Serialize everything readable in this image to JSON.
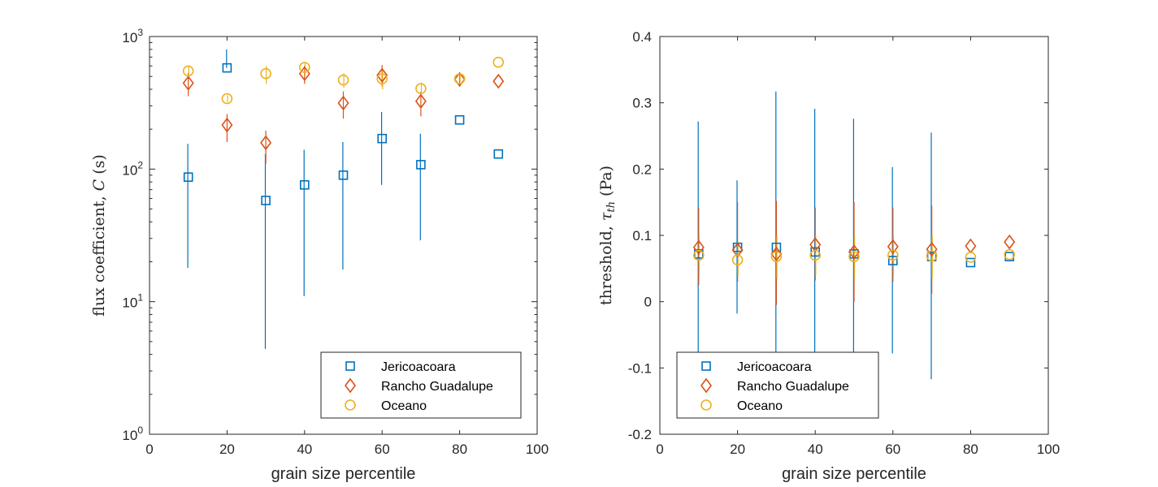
{
  "colors": {
    "jericoacoara": "#0072BD",
    "rancho": "#D95319",
    "oceano": "#EDB120",
    "axis": "#262626"
  },
  "chart_data": [
    {
      "type": "scatter",
      "xlabel": "grain size percentile",
      "ylabel": "flux coefficient, C (s)",
      "ylabel_parts": {
        "pre": "flux coefficient, ",
        "var": "C",
        "post": " (s)"
      },
      "xlim": [
        0,
        100
      ],
      "ylim": [
        1,
        1000
      ],
      "yscale": "log",
      "xticks": [
        0,
        20,
        40,
        60,
        80,
        100
      ],
      "yticks": [
        {
          "value": 1,
          "base": "10",
          "exp": "0"
        },
        {
          "value": 10,
          "base": "10",
          "exp": "1"
        },
        {
          "value": 100,
          "base": "10",
          "exp": "2"
        },
        {
          "value": 1000,
          "base": "10",
          "exp": "3"
        }
      ],
      "legend_position": "bottom-right",
      "series": [
        {
          "name": "Jericoacoara",
          "marker": "square",
          "x": [
            10,
            20,
            30,
            40,
            50,
            60,
            70,
            80,
            90
          ],
          "y": [
            87,
            580,
            58,
            76,
            90,
            170,
            108,
            235,
            130
          ],
          "yerr_low": [
            18,
            580,
            4.4,
            11,
            17.5,
            76,
            29,
            235,
            130
          ],
          "yerr_high": [
            155,
            800,
            130,
            140,
            160,
            270,
            185,
            235,
            130
          ]
        },
        {
          "name": "Rancho Guadalupe",
          "marker": "diamond",
          "x": [
            10,
            20,
            30,
            40,
            50,
            60,
            70,
            80,
            90
          ],
          "y": [
            445,
            215,
            158,
            525,
            315,
            510,
            325,
            475,
            460
          ],
          "yerr_low": [
            355,
            160,
            110,
            440,
            240,
            420,
            250,
            420,
            460
          ],
          "yerr_high": [
            530,
            260,
            195,
            600,
            385,
            610,
            385,
            530,
            460
          ]
        },
        {
          "name": "Oceano",
          "marker": "circle",
          "x": [
            10,
            20,
            30,
            40,
            50,
            60,
            70,
            80,
            90
          ],
          "y": [
            550,
            340,
            525,
            585,
            470,
            480,
            405,
            480,
            640
          ],
          "yerr_low": [
            500,
            320,
            440,
            520,
            410,
            400,
            370,
            450,
            640
          ],
          "yerr_high": [
            600,
            360,
            600,
            640,
            530,
            550,
            450,
            510,
            640
          ]
        }
      ]
    },
    {
      "type": "scatter",
      "xlabel": "grain size percentile",
      "ylabel": "threshold, τth (Pa)",
      "ylabel_parts": {
        "pre": "threshold, ",
        "var": "τ",
        "sub": "th",
        "post": " (Pa)"
      },
      "xlim": [
        0,
        100
      ],
      "ylim": [
        -0.2,
        0.4
      ],
      "yscale": "linear",
      "xticks": [
        0,
        20,
        40,
        60,
        80,
        100
      ],
      "yticks": [
        {
          "value": -0.2,
          "label": "-0.2"
        },
        {
          "value": -0.1,
          "label": "-0.1"
        },
        {
          "value": 0,
          "label": "0"
        },
        {
          "value": 0.1,
          "label": "0.1"
        },
        {
          "value": 0.2,
          "label": "0.2"
        },
        {
          "value": 0.3,
          "label": "0.3"
        },
        {
          "value": 0.4,
          "label": "0.4"
        }
      ],
      "legend_position": "bottom-left",
      "series": [
        {
          "name": "Jericoacoara",
          "marker": "square",
          "x": [
            10,
            20,
            30,
            40,
            50,
            60,
            70,
            80,
            90
          ],
          "y": [
            0.072,
            0.082,
            0.082,
            0.075,
            0.072,
            0.062,
            0.068,
            0.059,
            0.068
          ],
          "yerr_low": [
            -0.13,
            -0.018,
            -0.15,
            -0.14,
            -0.13,
            -0.078,
            -0.117,
            0.059,
            0.068
          ],
          "yerr_high": [
            0.272,
            0.183,
            0.317,
            0.291,
            0.276,
            0.203,
            0.255,
            0.059,
            0.068
          ]
        },
        {
          "name": "Rancho Guadalupe",
          "marker": "diamond",
          "x": [
            10,
            20,
            30,
            40,
            50,
            60,
            70,
            80,
            90
          ],
          "y": [
            0.082,
            0.078,
            0.072,
            0.086,
            0.075,
            0.083,
            0.079,
            0.084,
            0.09
          ],
          "yerr_low": [
            0.025,
            0.03,
            -0.005,
            0.032,
            0.0,
            0.03,
            0.012,
            0.084,
            0.09
          ],
          "yerr_high": [
            0.142,
            0.15,
            0.152,
            0.142,
            0.15,
            0.142,
            0.145,
            0.084,
            0.09
          ]
        },
        {
          "name": "Oceano",
          "marker": "circle",
          "x": [
            10,
            20,
            30,
            40,
            50,
            60,
            70,
            80,
            90
          ],
          "y": [
            0.07,
            0.063,
            0.068,
            0.07,
            0.068,
            0.07,
            0.069,
            0.067,
            0.071
          ],
          "yerr_low": [
            0.04,
            0.04,
            0.035,
            0.04,
            0.035,
            0.04,
            0.035,
            0.067,
            0.071
          ],
          "yerr_high": [
            0.1,
            0.09,
            0.1,
            0.1,
            0.1,
            0.1,
            0.1,
            0.067,
            0.071
          ]
        }
      ]
    }
  ]
}
